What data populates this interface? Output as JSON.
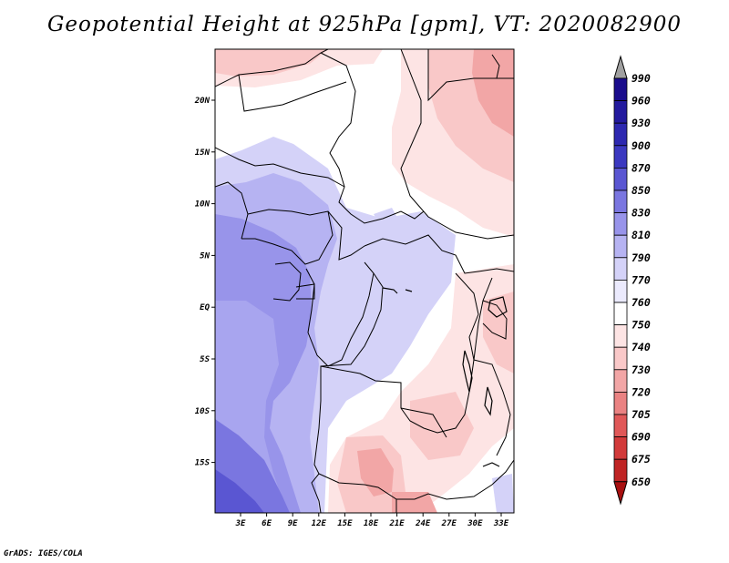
{
  "title": "Geopotential Height at 925hPa [gpm], VT: 2020082900",
  "credit": "GrADS: IGES/COLA",
  "lat_labels": [
    "20N",
    "15N",
    "10N",
    "5N",
    "EQ",
    "5S",
    "10S",
    "15S"
  ],
  "lon_labels": [
    "3E",
    "6E",
    "9E",
    "12E",
    "15E",
    "18E",
    "21E",
    "24E",
    "27E",
    "30E",
    "33E"
  ],
  "colorbar": {
    "labels": [
      "990",
      "960",
      "930",
      "900",
      "870",
      "850",
      "830",
      "810",
      "790",
      "770",
      "760",
      "750",
      "740",
      "730",
      "720",
      "705",
      "690",
      "675",
      "650"
    ],
    "colors": [
      "#ffffff",
      "#1a0c8c",
      "#231a9e",
      "#2d28b0",
      "#3b38c0",
      "#5a56d2",
      "#7a76e0",
      "#9894ea",
      "#b6b3f2",
      "#d4d2f8",
      "#ebeafd",
      "#ffffff",
      "#fde4e4",
      "#f9c8c8",
      "#f2a6a6",
      "#ea8282",
      "#e05858",
      "#d23a3a",
      "#bf2424",
      "#a81010"
    ],
    "arrow_top_color": "#a0a0a0",
    "arrow_bottom_color": "#a81010"
  }
}
